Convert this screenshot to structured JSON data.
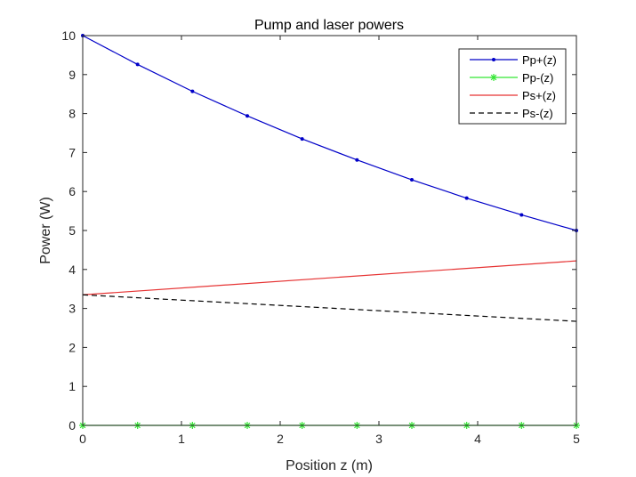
{
  "chart_data": {
    "type": "line",
    "title": "Pump and laser powers",
    "xlabel": "Position z (m)",
    "ylabel": "Power (W)",
    "xlim": [
      0,
      5
    ],
    "ylim": [
      0,
      10
    ],
    "xticks": [
      0,
      1,
      2,
      3,
      4,
      5
    ],
    "yticks": [
      0,
      1,
      2,
      3,
      4,
      5,
      6,
      7,
      8,
      9,
      10
    ],
    "grid": false,
    "legend_position": "top-right",
    "series": [
      {
        "name": "Pp+(z)",
        "color": "#0000c8",
        "line_style": "solid",
        "marker": "dot",
        "x": [
          0,
          0.5556,
          1.1111,
          1.6667,
          2.2222,
          2.7778,
          3.3333,
          3.8889,
          4.4444,
          5
        ],
        "values": [
          10.0,
          9.26,
          8.57,
          7.94,
          7.35,
          6.81,
          6.3,
          5.83,
          5.4,
          5.0
        ]
      },
      {
        "name": "Pp-(z)",
        "color": "#33e633",
        "line_style": "solid",
        "marker": "star",
        "x": [
          0,
          0.5556,
          1.1111,
          1.6667,
          2.2222,
          2.7778,
          3.3333,
          3.8889,
          4.4444,
          5
        ],
        "values": [
          0,
          0,
          0,
          0,
          0,
          0,
          0,
          0,
          0,
          0
        ]
      },
      {
        "name": "Ps+(z)",
        "color": "#e63333",
        "line_style": "solid",
        "marker": "none",
        "x": [
          0,
          5
        ],
        "values": [
          3.35,
          4.22
        ]
      },
      {
        "name": "Ps-(z)",
        "color": "#000000",
        "line_style": "dashed",
        "marker": "none",
        "x": [
          0,
          5
        ],
        "values": [
          3.35,
          2.67
        ]
      }
    ]
  }
}
